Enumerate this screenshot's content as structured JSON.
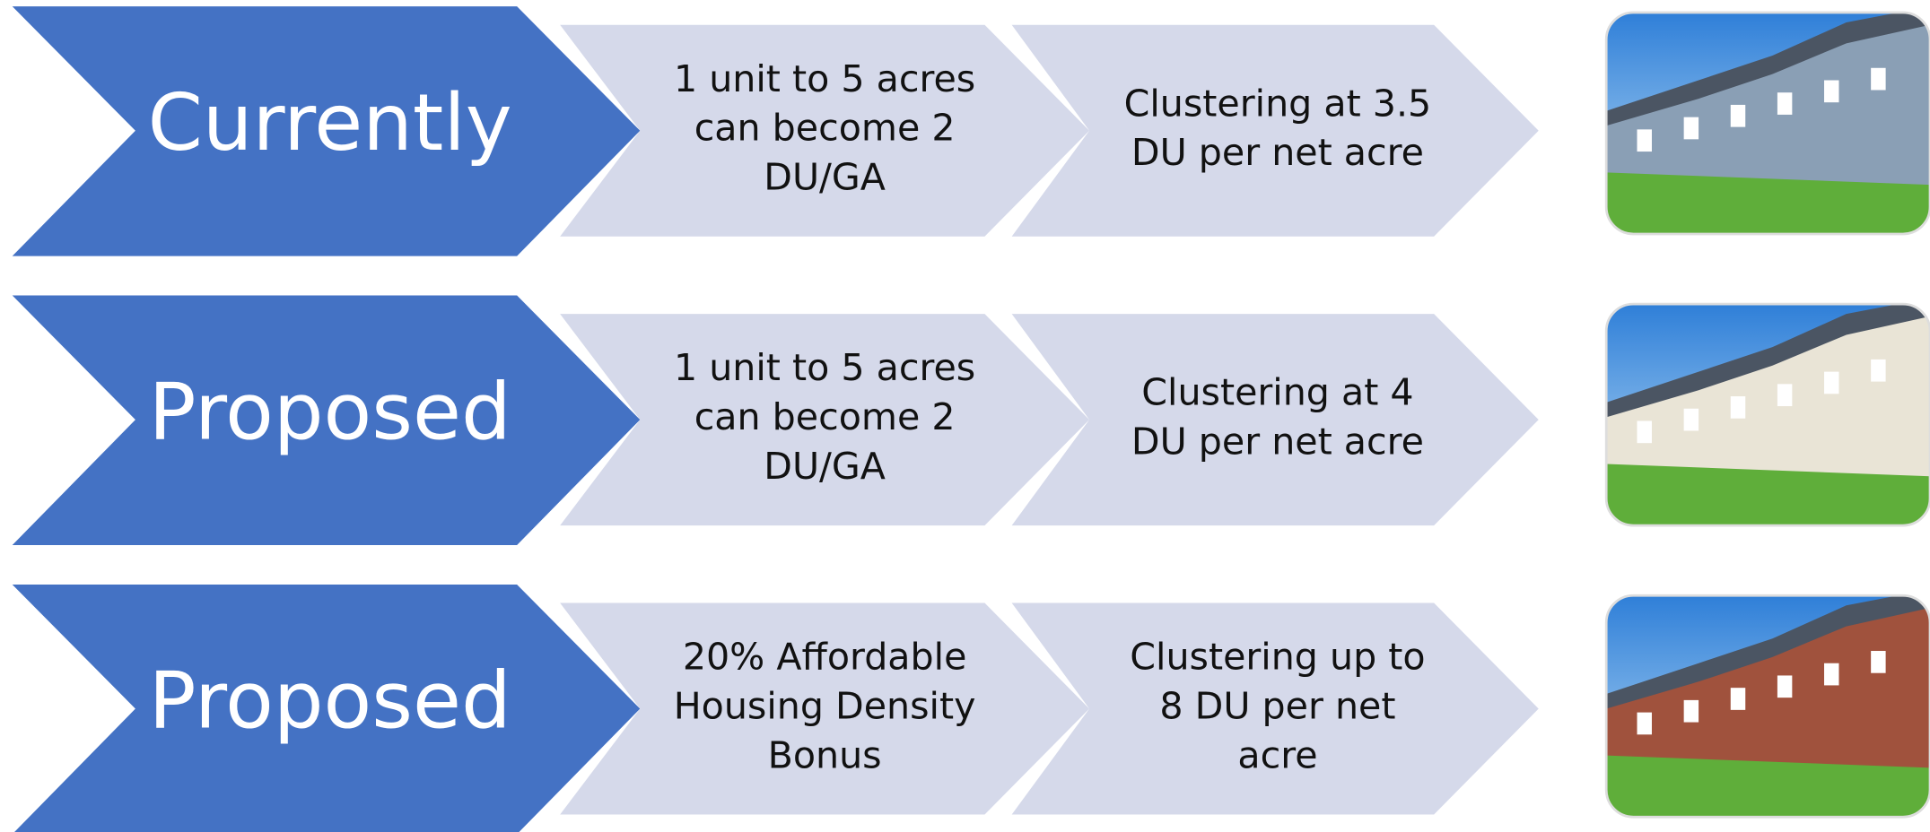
{
  "rows": [
    {
      "label": "Currently",
      "steps": [
        [
          "1 unit to 5 acres",
          "can become 2",
          "DU/GA"
        ],
        [
          "Clustering at 3.5",
          "DU per net acre"
        ]
      ]
    },
    {
      "label": "Proposed",
      "steps": [
        [
          "1 unit to 5 acres",
          "can become 2",
          "DU/GA"
        ],
        [
          "Clustering at 4",
          "DU per net acre"
        ]
      ]
    },
    {
      "label": "Proposed",
      "steps": [
        [
          "20% Affordable",
          "Housing Density",
          "Bonus"
        ],
        [
          "Clustering up to",
          "8 DU per net",
          "acre"
        ]
      ]
    }
  ]
}
